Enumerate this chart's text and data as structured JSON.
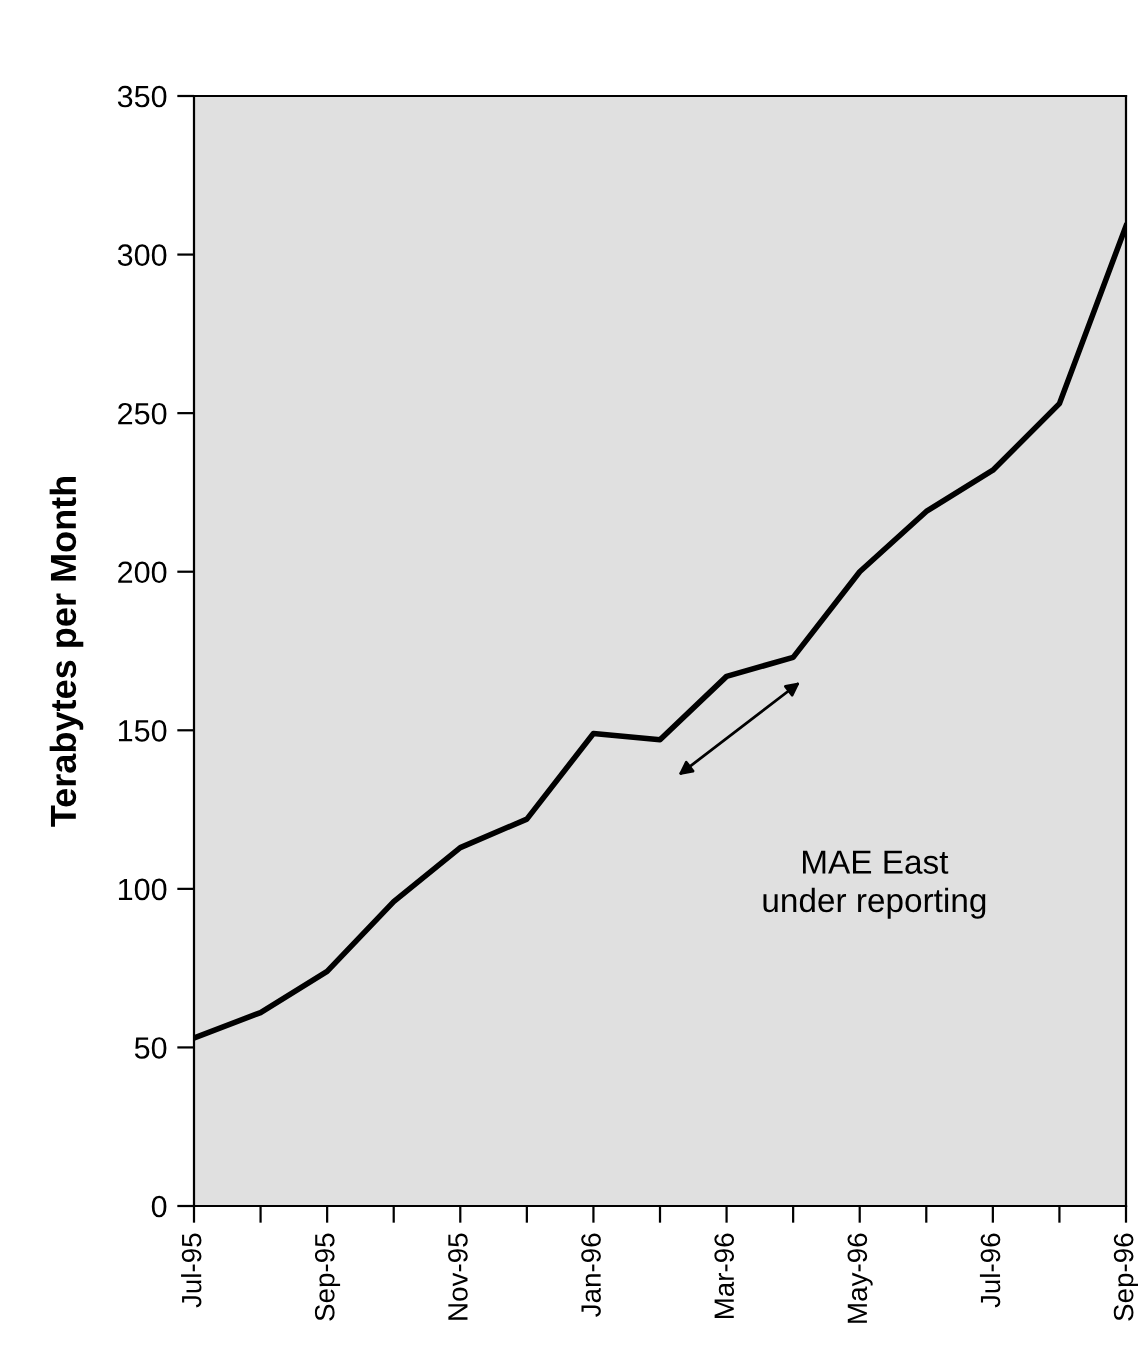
{
  "chart_data": {
    "type": "line",
    "ylabel": "Terabytes per Month",
    "categories": [
      "Jul-95",
      null,
      "Sep-95",
      null,
      "Nov-95",
      null,
      "Jan-96",
      null,
      "Mar-96",
      null,
      "May-96",
      null,
      "Jul-96",
      null,
      "Sep-96"
    ],
    "series": [
      {
        "color": "#000000",
        "values": [
          53,
          61,
          74,
          96,
          113,
          122,
          149,
          147,
          167,
          173,
          200,
          219,
          232,
          253,
          309
        ]
      }
    ],
    "ylim": [
      0,
      350
    ],
    "yticks": [
      0,
      50,
      100,
      150,
      200,
      250,
      300,
      350
    ],
    "annotations": [
      "MAE East\nunder reporting"
    ],
    "grid": false,
    "legend": false,
    "marker": "none",
    "line_style": "solid"
  }
}
